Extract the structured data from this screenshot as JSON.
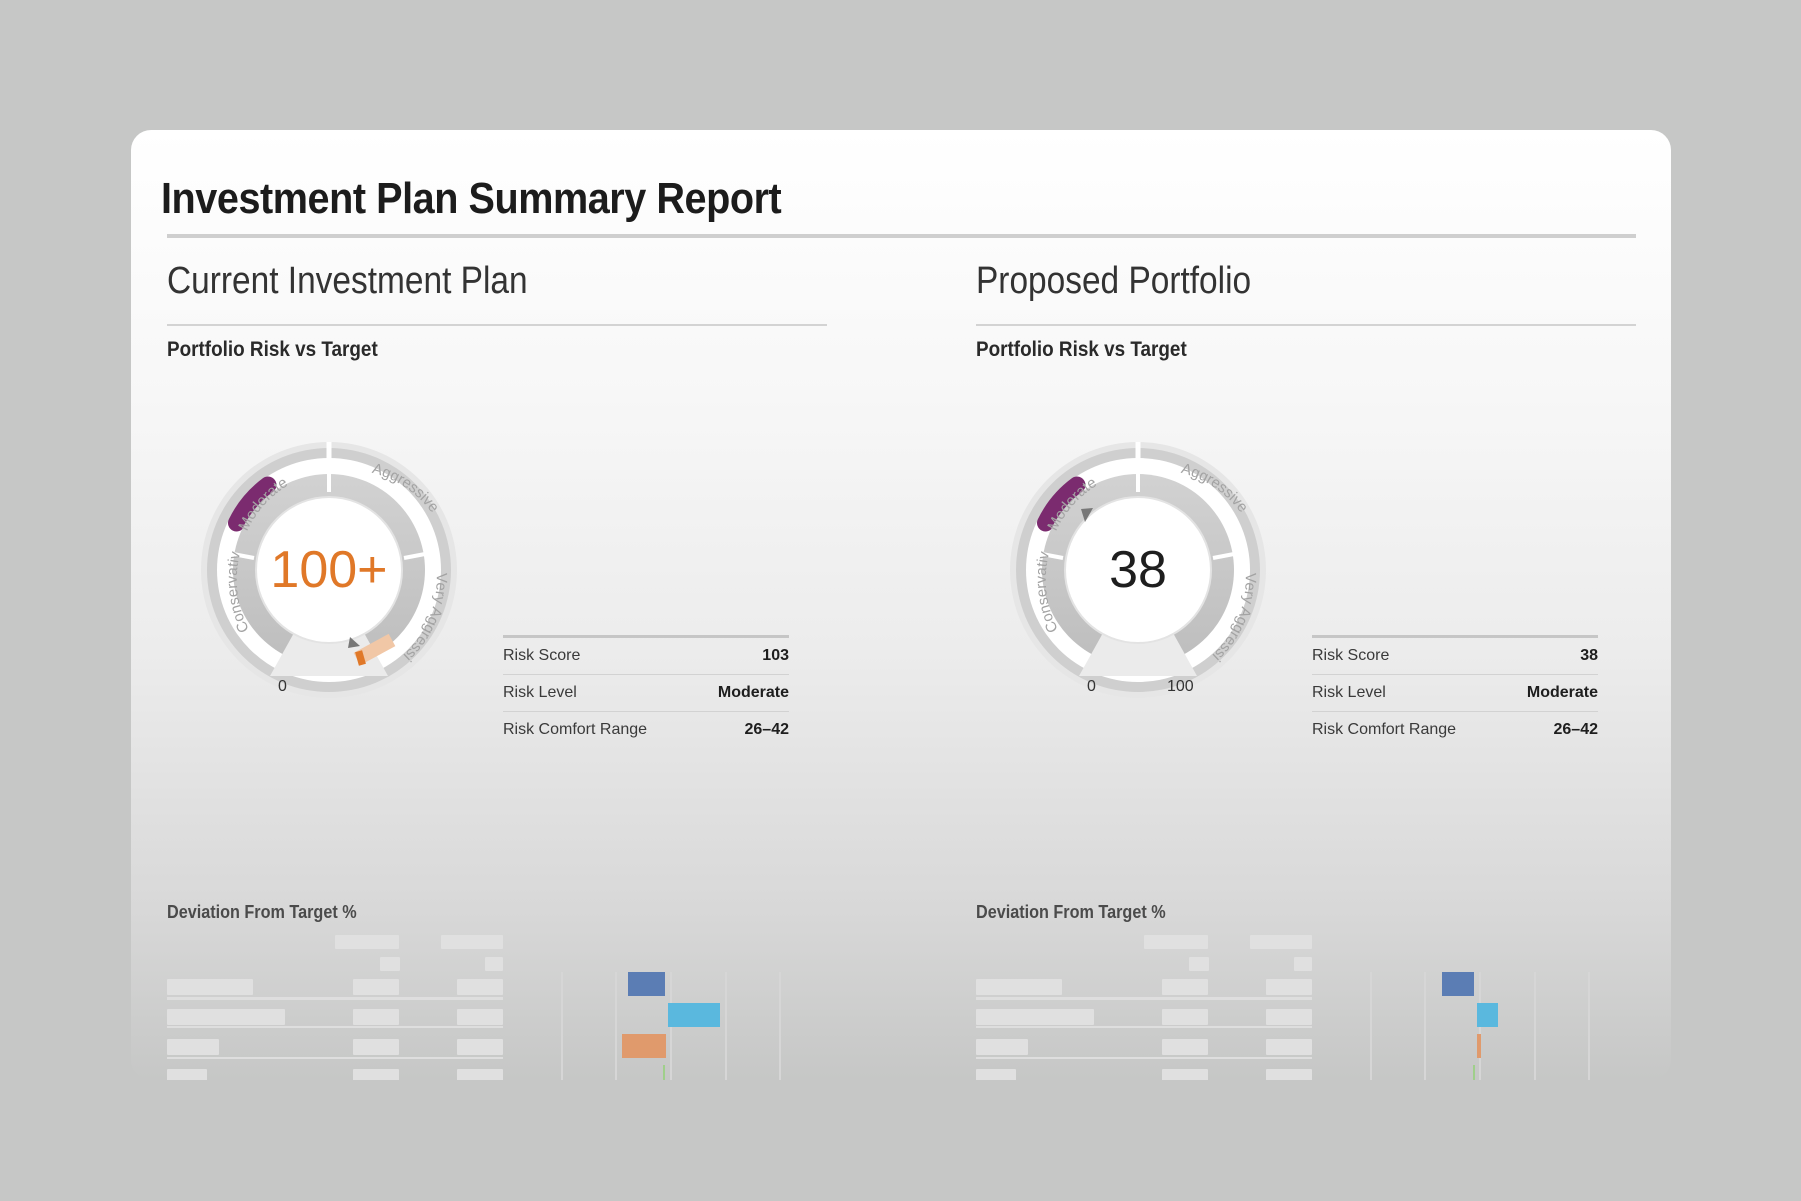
{
  "report": {
    "title": "Investment Plan Summary Report"
  },
  "colors": {
    "background": "#c6c7c6",
    "score_high": "#e07828",
    "target_band": "#7b2b6f",
    "bar_colors": [
      "#5b7db4",
      "#5ab8de",
      "#e09a6c",
      "#9fcf8a",
      "#eed088"
    ]
  },
  "panels": [
    {
      "heading": "Current Investment Plan",
      "subheading": "Portfolio Risk vs Target",
      "gauge": {
        "score_display": "100+",
        "pointer_value": 103,
        "bands": [
          "Conservative",
          "Moderate",
          "Aggressive",
          "Very Aggressive"
        ],
        "min_label": "0",
        "max_label": "",
        "comfort_range": [
          26,
          42
        ]
      },
      "metrics": [
        {
          "label": "Risk Score",
          "value": "103"
        },
        {
          "label": "Risk Level",
          "value": "Moderate"
        },
        {
          "label": "Risk Comfort Range",
          "value": "26–42"
        }
      ],
      "deviation_title": "Deviation From Target %"
    },
    {
      "heading": "Proposed Portfolio",
      "subheading": "Portfolio Risk vs Target",
      "gauge": {
        "score_display": "38",
        "pointer_value": 38,
        "bands": [
          "Conservative",
          "Moderate",
          "Aggressive",
          "Very Aggressive"
        ],
        "min_label": "0",
        "max_label": "100",
        "comfort_range": [
          26,
          42
        ]
      },
      "metrics": [
        {
          "label": "Risk Score",
          "value": "38"
        },
        {
          "label": "Risk Level",
          "value": "Moderate"
        },
        {
          "label": "Risk Comfort Range",
          "value": "26–42"
        }
      ],
      "deviation_title": "Deviation From Target %"
    }
  ]
}
